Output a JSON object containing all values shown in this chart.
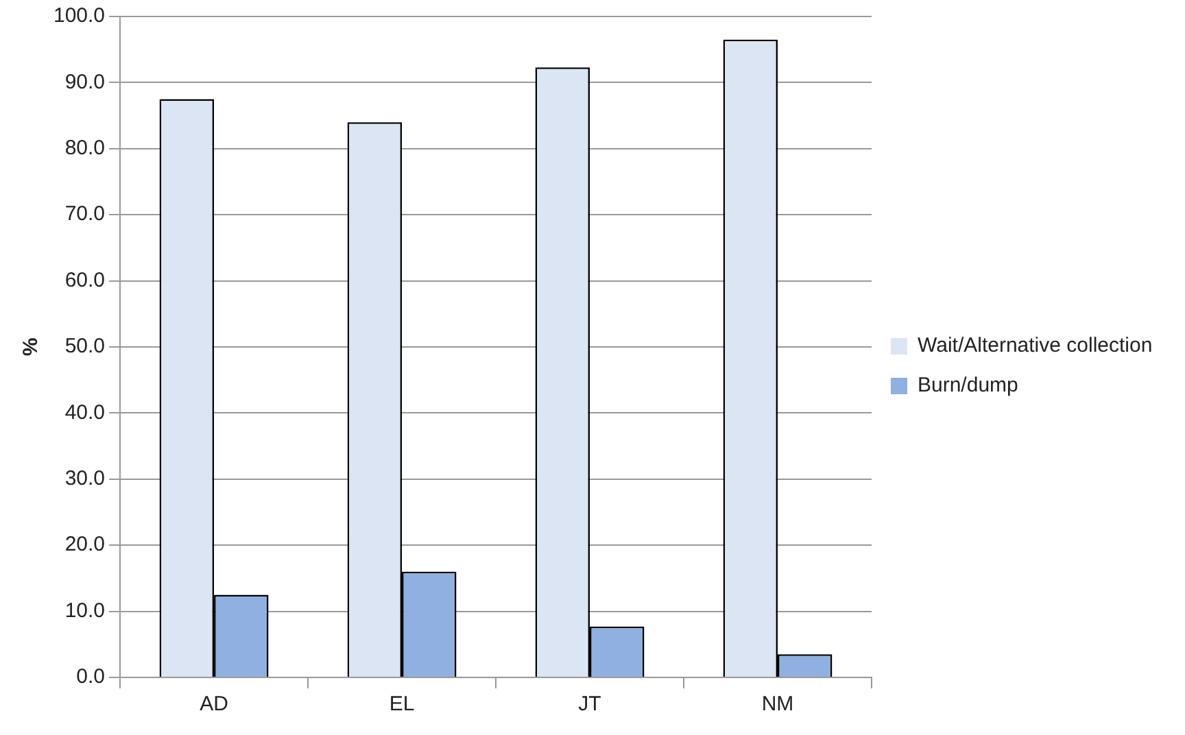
{
  "chart_data": {
    "type": "bar",
    "ylabel": "%",
    "categories": [
      "AD",
      "EL",
      "JT",
      "NM"
    ],
    "series": [
      {
        "name": "Wait/Alternative collection",
        "color": "#dbe5f4",
        "values": [
          87.5,
          84.0,
          92.3,
          96.5
        ]
      },
      {
        "name": "Burn/dump",
        "color": "#8fb0e0",
        "values": [
          12.5,
          16.0,
          7.7,
          3.5
        ]
      }
    ],
    "ylim": [
      0,
      100
    ],
    "yticks": [
      {
        "value": 0,
        "label": "0.0"
      },
      {
        "value": 10,
        "label": "10.0"
      },
      {
        "value": 20,
        "label": "20.0"
      },
      {
        "value": 30,
        "label": "30.0"
      },
      {
        "value": 40,
        "label": "40.0"
      },
      {
        "value": 50,
        "label": "50.0"
      },
      {
        "value": 60,
        "label": "60.0"
      },
      {
        "value": 70,
        "label": "70.0"
      },
      {
        "value": 80,
        "label": "80.0"
      },
      {
        "value": 90,
        "label": "90.0"
      },
      {
        "value": 100,
        "label": "100.0"
      }
    ],
    "grid": "y",
    "legend": "right"
  }
}
